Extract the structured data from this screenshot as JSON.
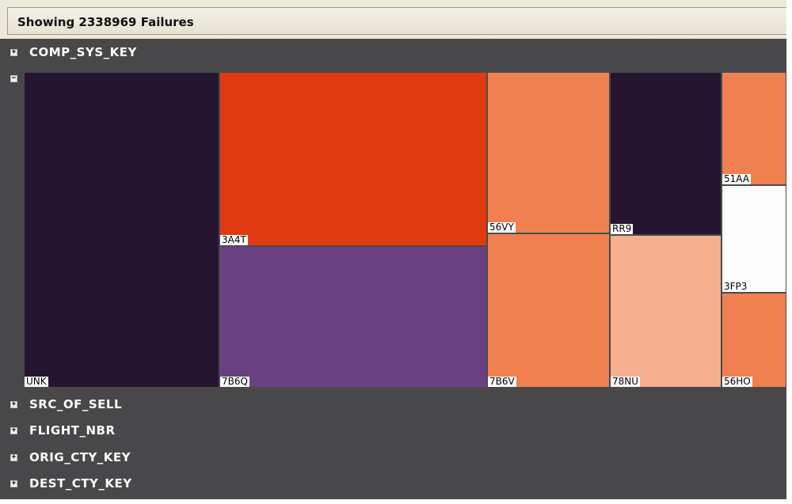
{
  "header": {
    "title": "Showing 2338969 Failures"
  },
  "groups": {
    "comp_sys_key": {
      "label": "COMP_SYS_KEY",
      "toggle": "+"
    },
    "expanded": {
      "toggle": "−"
    },
    "src_of_sell": {
      "label": "SRC_OF_SELL",
      "toggle": "+"
    },
    "flight_nbr": {
      "label": "FLIGHT_NBR",
      "toggle": "+"
    },
    "orig_cty_key": {
      "label": "ORIG_CTY_KEY",
      "toggle": "+"
    },
    "dest_cty_key": {
      "label": "DEST_CTY_KEY",
      "toggle": "+"
    }
  },
  "treemap": {
    "cells": [
      {
        "label": "UNK",
        "color": "#261530"
      },
      {
        "label": "3A4T",
        "color": "#e23a10"
      },
      {
        "label": "7B6Q",
        "color": "#694183"
      },
      {
        "label": "56VY",
        "color": "#f0804f"
      },
      {
        "label": "7B6V",
        "color": "#f0804f"
      },
      {
        "label": "RR9",
        "color": "#261530"
      },
      {
        "label": "78NU",
        "color": "#f4b08f"
      },
      {
        "label": "51AA",
        "color": "#f0804f"
      },
      {
        "label": "3FP3",
        "color": "#fcfcfc"
      },
      {
        "label": "56HO",
        "color": "#f0804f"
      }
    ]
  }
}
